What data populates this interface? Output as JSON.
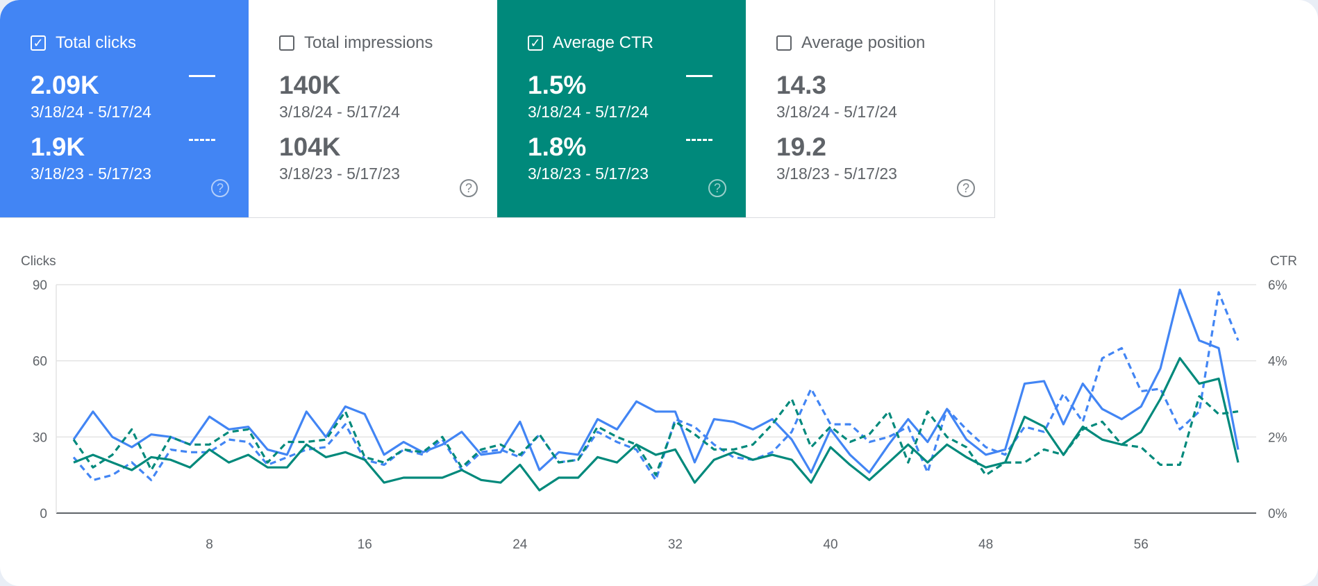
{
  "cards": [
    {
      "title": "Total clicks",
      "checked": true,
      "color": "#4285f4",
      "current_value": "2.09K",
      "current_range": "3/18/24 - 5/17/24",
      "previous_value": "1.9K",
      "previous_range": "3/18/23 - 5/17/23",
      "help_icon": "question-circle-icon"
    },
    {
      "title": "Total impressions",
      "checked": false,
      "current_value": "140K",
      "current_range": "3/18/24 - 5/17/24",
      "previous_value": "104K",
      "previous_range": "3/18/23 - 5/17/23",
      "help_icon": "question-circle-icon"
    },
    {
      "title": "Average CTR",
      "checked": true,
      "color": "#00897b",
      "current_value": "1.5%",
      "current_range": "3/18/24 - 5/17/24",
      "previous_value": "1.8%",
      "previous_range": "3/18/23 - 5/17/23",
      "help_icon": "question-circle-icon"
    },
    {
      "title": "Average position",
      "checked": false,
      "current_value": "14.3",
      "current_range": "3/18/24 - 5/17/24",
      "previous_value": "19.2",
      "previous_range": "3/18/23 - 5/17/23",
      "help_icon": "question-circle-icon"
    }
  ],
  "chart_data": {
    "type": "line",
    "ylabel_left": "Clicks",
    "ylabel_right": "CTR",
    "ylim_left": [
      0,
      90
    ],
    "ylim_right": [
      0,
      6
    ],
    "yticks_left": [
      "0",
      "30",
      "60",
      "90"
    ],
    "yticks_right": [
      "0%",
      "2%",
      "4%",
      "6%"
    ],
    "xticks": [
      "8",
      "16",
      "24",
      "32",
      "40",
      "48",
      "56"
    ],
    "xtick_values": [
      8,
      16,
      24,
      32,
      40,
      48,
      56
    ],
    "grid": true,
    "series": [
      {
        "metric": "clicks",
        "period": "current",
        "axis": "left",
        "color": "#4285f4",
        "style": "solid",
        "values": [
          29,
          40,
          30,
          26,
          31,
          30,
          27,
          38,
          33,
          34,
          25,
          23,
          40,
          30,
          42,
          39,
          23,
          28,
          24,
          27,
          32,
          23,
          24,
          36,
          17,
          24,
          23,
          37,
          33,
          44,
          40,
          40,
          20,
          37,
          36,
          33,
          37,
          29,
          16,
          33,
          23,
          16,
          27,
          37,
          28,
          41,
          29,
          23,
          25,
          51,
          52,
          35,
          51,
          41,
          37,
          42,
          57,
          88,
          68,
          65,
          25
        ]
      },
      {
        "metric": "clicks",
        "period": "previous",
        "axis": "left",
        "color": "#4285f4",
        "style": "dashed",
        "values": [
          22,
          13,
          15,
          20,
          13,
          25,
          24,
          24,
          29,
          28,
          19,
          22,
          25,
          26,
          35,
          21,
          19,
          25,
          23,
          29,
          17,
          24,
          25,
          22,
          31,
          20,
          21,
          32,
          28,
          25,
          13,
          37,
          34,
          27,
          22,
          21,
          24,
          32,
          49,
          35,
          35,
          28,
          30,
          34,
          16,
          41,
          33,
          26,
          23,
          34,
          32,
          47,
          36,
          61,
          65,
          48,
          49,
          33,
          40,
          87,
          68
        ]
      },
      {
        "metric": "ctr",
        "period": "current",
        "axis": "right",
        "color": "#00897b",
        "style": "solid",
        "values": [
          1.33,
          1.53,
          1.33,
          1.13,
          1.47,
          1.4,
          1.2,
          1.67,
          1.33,
          1.53,
          1.2,
          1.2,
          1.8,
          1.47,
          1.6,
          1.4,
          0.8,
          0.93,
          0.93,
          0.93,
          1.13,
          0.87,
          0.8,
          1.27,
          0.6,
          0.93,
          0.93,
          1.47,
          1.33,
          1.8,
          1.53,
          1.67,
          0.8,
          1.4,
          1.6,
          1.4,
          1.53,
          1.4,
          0.8,
          1.73,
          1.27,
          0.87,
          1.33,
          1.8,
          1.33,
          1.8,
          1.47,
          1.2,
          1.33,
          2.53,
          2.27,
          1.53,
          2.27,
          1.93,
          1.8,
          2.13,
          3.0,
          4.07,
          3.4,
          3.53,
          1.33
        ]
      },
      {
        "metric": "ctr",
        "period": "previous",
        "axis": "right",
        "color": "#00897b",
        "style": "dashed",
        "values": [
          1.93,
          1.2,
          1.53,
          2.2,
          1.13,
          2.0,
          1.8,
          1.8,
          2.13,
          2.2,
          1.33,
          1.87,
          1.87,
          1.93,
          2.67,
          1.47,
          1.33,
          1.67,
          1.6,
          2.0,
          1.2,
          1.67,
          1.8,
          1.53,
          2.07,
          1.33,
          1.4,
          2.27,
          2.0,
          1.8,
          1.0,
          2.4,
          2.07,
          1.67,
          1.67,
          1.8,
          2.33,
          3.0,
          1.73,
          2.27,
          1.87,
          2.07,
          2.67,
          1.33,
          2.67,
          2.0,
          1.73,
          1.0,
          1.33,
          1.33,
          1.67,
          1.53,
          2.2,
          2.4,
          1.8,
          1.73,
          1.27,
          1.27,
          3.07,
          2.6,
          2.67
        ]
      }
    ]
  }
}
